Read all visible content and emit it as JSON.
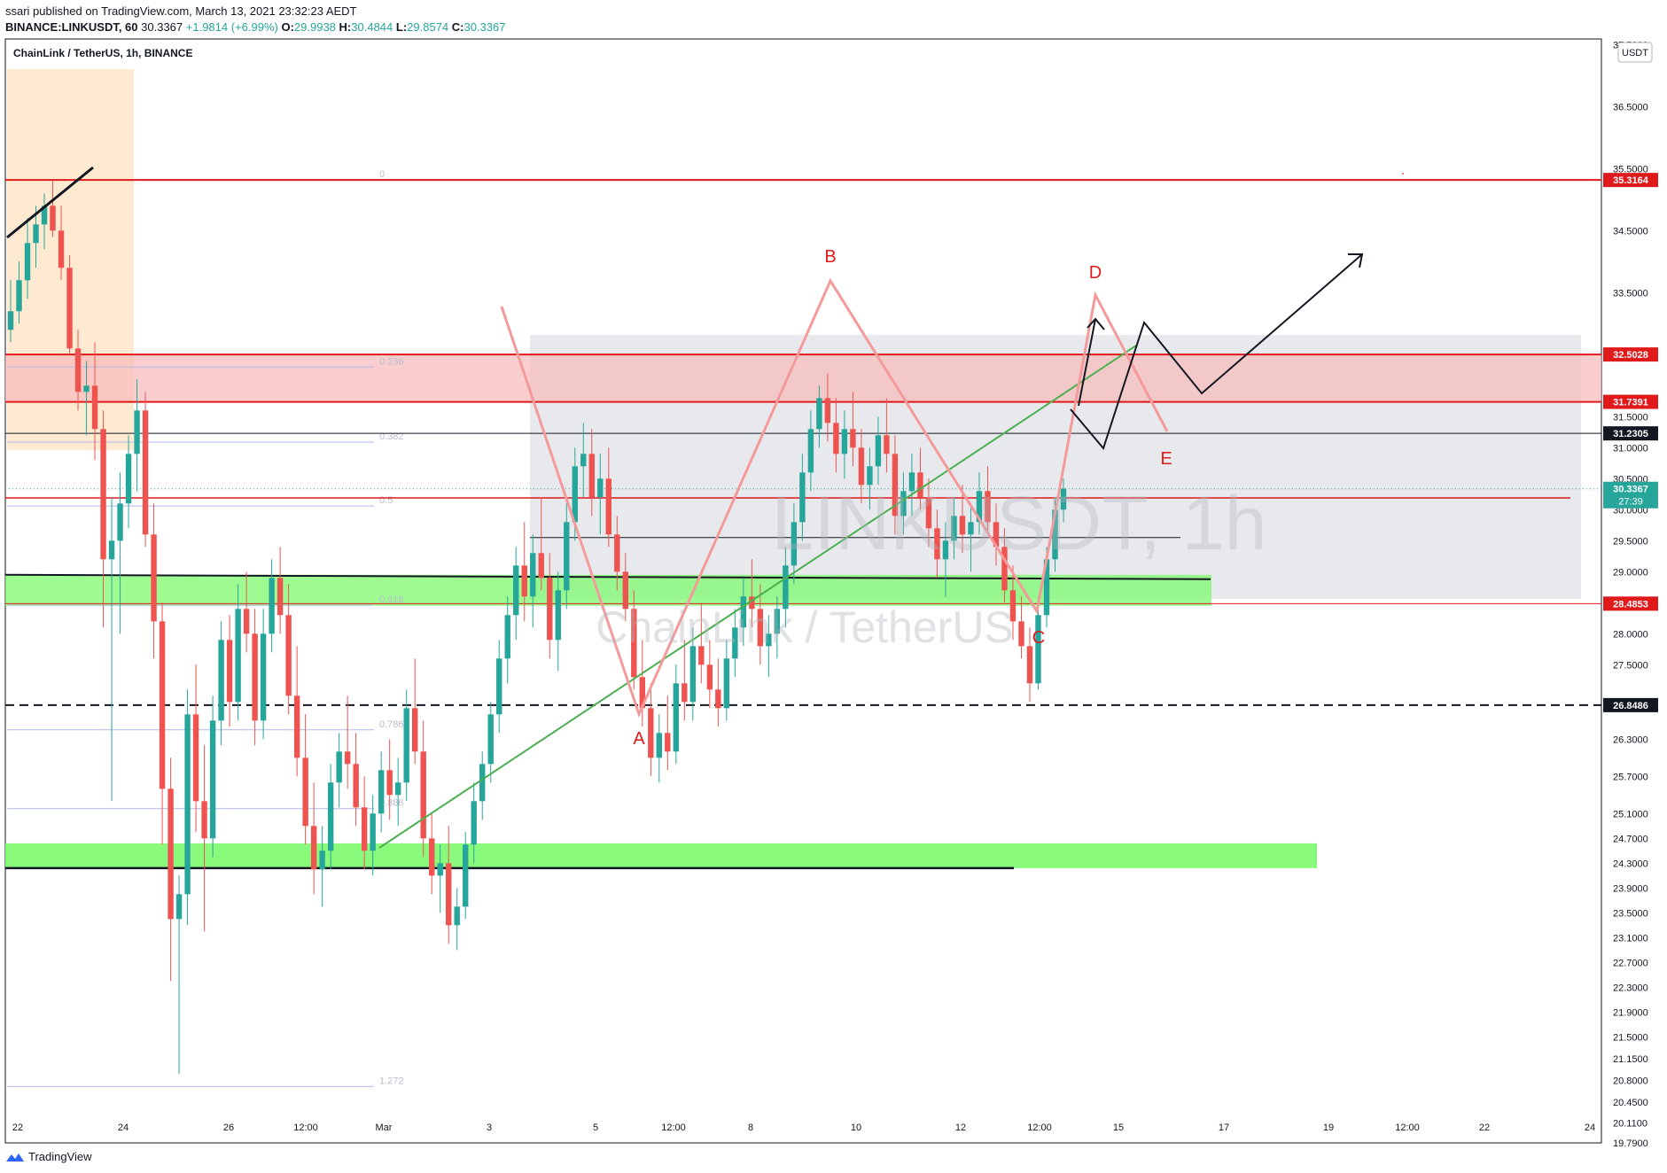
{
  "header": {
    "published": "ssari published on TradingView.com, March 13, 2021 23:32:23 AEDT",
    "symbol": "BINANCE:LINKUSDT, 60",
    "last": "30.3367",
    "change": "+1.9814 (+6.99%)",
    "o_label": "O:",
    "o": "29.9938",
    "h_label": "H:",
    "h": "30.4844",
    "l_label": "L:",
    "l": "29.8574",
    "c_label": "C:",
    "c": "30.3367"
  },
  "chart_title": "ChainLink / TetherUS, 1h, BINANCE",
  "watermark": {
    "symbol": "LINKUSDT, 1h",
    "name": "ChainLink / TetherUS"
  },
  "currency_button": "USDT",
  "footer_brand": "TradingView",
  "colors": {
    "up": "#26a69a",
    "down": "#ef5350",
    "level_red": "#e0191b",
    "green_zone": "#7dfa6e",
    "pink_zone": "#f8b9b9",
    "pattern": "#f59a9a",
    "trend": "#4caf50"
  },
  "chart_data": {
    "type": "candlestick",
    "title": "ChainLink / TetherUS, 1h, BINANCE",
    "ylim": [
      19.79,
      37.59
    ],
    "y_ticks": [
      "37.5000",
      "36.5000",
      "35.5000",
      "34.5000",
      "33.5000",
      "31.5000",
      "31.0000",
      "30.5000",
      "30.0000",
      "29.5000",
      "29.0000",
      "28.0000",
      "27.5000",
      "26.3000",
      "25.7000",
      "25.1000",
      "24.7000",
      "24.3000",
      "23.9000",
      "23.5000",
      "23.1000",
      "22.7000",
      "22.3000",
      "21.9000",
      "21.5000",
      "21.1500",
      "20.8000",
      "20.4500",
      "20.1100",
      "19.7900"
    ],
    "x_ticks": [
      "22",
      "24",
      "26",
      "12:00",
      "Mar",
      "3",
      "5",
      "12:00",
      "8",
      "10",
      "12",
      "12:00",
      "15",
      "17",
      "19",
      "12:00",
      "22",
      "24"
    ],
    "price_labels": [
      {
        "value": "35.3164",
        "kind": "red"
      },
      {
        "value": "32.5028",
        "kind": "red"
      },
      {
        "value": "31.7391",
        "kind": "red"
      },
      {
        "value": "31.2305",
        "kind": "black"
      },
      {
        "value": "30.3367",
        "kind": "last",
        "sub": "27:39"
      },
      {
        "value": "28.4853",
        "kind": "red"
      },
      {
        "value": "26.8486",
        "kind": "black"
      }
    ],
    "fib_levels": [
      {
        "label": "0",
        "price": 35.3164
      },
      {
        "label": "0.236",
        "price": 32.3
      },
      {
        "label": "0.382",
        "price": 31.09
      },
      {
        "label": "0.5",
        "price": 30.06
      },
      {
        "label": "0.618",
        "price": 28.46
      },
      {
        "label": "0.786",
        "price": 26.45
      },
      {
        "label": "0.886",
        "price": 25.18
      },
      {
        "label": "1.272",
        "price": 20.7
      }
    ],
    "pattern_labels": [
      "A",
      "B",
      "C",
      "D",
      "E"
    ],
    "candles": [
      [
        32.9,
        33.7,
        32.7,
        33.2
      ],
      [
        33.2,
        34.0,
        33.0,
        33.7
      ],
      [
        33.7,
        34.7,
        33.4,
        34.3
      ],
      [
        34.3,
        34.9,
        33.9,
        34.6
      ],
      [
        34.6,
        35.1,
        34.2,
        34.9
      ],
      [
        34.9,
        35.3,
        34.4,
        34.5
      ],
      [
        34.5,
        34.9,
        33.7,
        33.9
      ],
      [
        33.9,
        34.1,
        32.5,
        32.6
      ],
      [
        32.6,
        32.9,
        31.6,
        31.9
      ],
      [
        31.9,
        32.4,
        31.2,
        32.0
      ],
      [
        32.0,
        32.7,
        30.8,
        31.3
      ],
      [
        31.3,
        31.6,
        28.1,
        29.2
      ],
      [
        29.2,
        30.2,
        25.3,
        29.5
      ],
      [
        29.5,
        30.6,
        28.0,
        30.1
      ],
      [
        30.1,
        31.2,
        29.7,
        30.9
      ],
      [
        30.9,
        32.1,
        30.3,
        31.6
      ],
      [
        31.6,
        31.9,
        29.4,
        29.6
      ],
      [
        29.6,
        30.1,
        27.6,
        28.2
      ],
      [
        28.2,
        28.5,
        24.6,
        25.5
      ],
      [
        25.5,
        26.0,
        22.4,
        23.4
      ],
      [
        23.4,
        24.1,
        20.9,
        23.8
      ],
      [
        23.8,
        27.1,
        23.3,
        26.7
      ],
      [
        26.7,
        27.5,
        24.8,
        25.3
      ],
      [
        25.3,
        26.2,
        23.2,
        24.7
      ],
      [
        24.7,
        27.0,
        24.4,
        26.6
      ],
      [
        26.6,
        28.2,
        26.2,
        27.9
      ],
      [
        27.9,
        28.3,
        26.5,
        26.9
      ],
      [
        26.9,
        28.8,
        26.6,
        28.4
      ],
      [
        28.4,
        29.0,
        27.7,
        28.0
      ],
      [
        28.0,
        28.4,
        26.2,
        26.6
      ],
      [
        26.6,
        28.4,
        26.3,
        28.0
      ],
      [
        28.0,
        29.2,
        27.7,
        28.9
      ],
      [
        28.9,
        29.4,
        28.0,
        28.3
      ],
      [
        28.3,
        28.8,
        26.7,
        27.0
      ],
      [
        27.0,
        27.8,
        25.7,
        26.0
      ],
      [
        26.0,
        26.7,
        24.6,
        24.9
      ],
      [
        24.9,
        25.6,
        23.8,
        24.2
      ],
      [
        24.2,
        24.9,
        23.6,
        24.5
      ],
      [
        24.5,
        25.9,
        24.2,
        25.6
      ],
      [
        25.6,
        26.4,
        25.2,
        26.1
      ],
      [
        26.1,
        27.0,
        25.5,
        25.9
      ],
      [
        25.9,
        26.4,
        24.9,
        25.2
      ],
      [
        25.2,
        25.7,
        24.2,
        24.5
      ],
      [
        24.5,
        25.4,
        24.1,
        25.1
      ],
      [
        25.1,
        26.1,
        24.8,
        25.8
      ],
      [
        25.8,
        26.3,
        25.0,
        25.4
      ],
      [
        25.4,
        26.0,
        24.9,
        25.6
      ],
      [
        25.6,
        27.1,
        25.3,
        26.8
      ],
      [
        26.8,
        27.6,
        25.9,
        26.1
      ],
      [
        26.1,
        26.6,
        24.4,
        24.7
      ],
      [
        24.7,
        25.1,
        23.8,
        24.1
      ],
      [
        24.1,
        24.6,
        23.5,
        24.3
      ],
      [
        24.3,
        24.9,
        23.0,
        23.3
      ],
      [
        23.3,
        23.9,
        22.9,
        23.6
      ],
      [
        23.6,
        24.8,
        23.4,
        24.6
      ],
      [
        24.6,
        25.6,
        24.3,
        25.3
      ],
      [
        25.3,
        26.1,
        25.0,
        25.9
      ],
      [
        25.9,
        26.9,
        25.6,
        26.7
      ],
      [
        26.7,
        27.9,
        26.4,
        27.6
      ],
      [
        27.6,
        28.6,
        27.2,
        28.3
      ],
      [
        28.3,
        29.4,
        27.9,
        29.1
      ],
      [
        29.1,
        29.8,
        28.2,
        28.6
      ],
      [
        28.6,
        29.6,
        28.1,
        29.3
      ],
      [
        29.3,
        30.2,
        28.7,
        28.9
      ],
      [
        28.9,
        29.3,
        27.6,
        27.9
      ],
      [
        27.9,
        29.0,
        27.4,
        28.7
      ],
      [
        28.7,
        30.1,
        28.4,
        29.8
      ],
      [
        29.8,
        31.0,
        29.5,
        30.7
      ],
      [
        30.7,
        31.4,
        30.2,
        30.9
      ],
      [
        30.9,
        31.3,
        29.9,
        30.2
      ],
      [
        30.2,
        30.9,
        29.6,
        30.5
      ],
      [
        30.5,
        31.0,
        29.4,
        29.6
      ],
      [
        29.6,
        29.9,
        28.7,
        29.0
      ],
      [
        29.0,
        29.3,
        28.2,
        28.4
      ],
      [
        28.4,
        28.7,
        27.1,
        27.3
      ],
      [
        27.3,
        27.9,
        26.5,
        26.8
      ],
      [
        26.8,
        27.2,
        25.7,
        26.0
      ],
      [
        26.0,
        26.7,
        25.6,
        26.4
      ],
      [
        26.4,
        27.0,
        25.8,
        26.1
      ],
      [
        26.1,
        27.5,
        25.9,
        27.2
      ],
      [
        27.2,
        27.9,
        26.6,
        26.9
      ],
      [
        26.9,
        28.1,
        26.6,
        27.8
      ],
      [
        27.8,
        28.5,
        27.2,
        27.5
      ],
      [
        27.5,
        27.9,
        26.8,
        27.1
      ],
      [
        27.1,
        27.6,
        26.5,
        26.8
      ],
      [
        26.8,
        27.9,
        26.6,
        27.6
      ],
      [
        27.6,
        28.4,
        27.3,
        28.1
      ],
      [
        28.1,
        28.9,
        27.8,
        28.6
      ],
      [
        28.6,
        29.2,
        28.1,
        28.4
      ],
      [
        28.4,
        28.8,
        27.5,
        27.8
      ],
      [
        27.8,
        28.3,
        27.3,
        28.0
      ],
      [
        28.0,
        28.6,
        27.6,
        28.4
      ],
      [
        28.4,
        29.4,
        28.1,
        29.1
      ],
      [
        29.1,
        30.1,
        28.8,
        29.8
      ],
      [
        29.8,
        30.9,
        29.5,
        30.6
      ],
      [
        30.6,
        31.6,
        30.3,
        31.3
      ],
      [
        31.3,
        32.0,
        31.0,
        31.8
      ],
      [
        31.8,
        32.2,
        31.1,
        31.4
      ],
      [
        31.4,
        31.8,
        30.6,
        30.9
      ],
      [
        30.9,
        31.6,
        30.5,
        31.3
      ],
      [
        31.3,
        31.9,
        30.7,
        31.0
      ],
      [
        31.0,
        31.3,
        30.1,
        30.4
      ],
      [
        30.4,
        31.0,
        30.0,
        30.7
      ],
      [
        30.7,
        31.5,
        30.4,
        31.2
      ],
      [
        31.2,
        31.8,
        30.6,
        30.9
      ],
      [
        30.9,
        31.2,
        29.6,
        29.9
      ],
      [
        29.9,
        30.6,
        29.6,
        30.3
      ],
      [
        30.3,
        30.9,
        29.9,
        30.6
      ],
      [
        30.6,
        31.0,
        30.0,
        30.2
      ],
      [
        30.2,
        30.5,
        29.4,
        29.7
      ],
      [
        29.7,
        30.0,
        28.9,
        29.2
      ],
      [
        29.2,
        29.8,
        28.6,
        29.5
      ],
      [
        29.5,
        30.2,
        29.2,
        29.9
      ],
      [
        29.9,
        30.4,
        29.3,
        29.6
      ],
      [
        29.6,
        30.1,
        29.0,
        29.8
      ],
      [
        29.8,
        30.6,
        29.6,
        30.3
      ],
      [
        30.3,
        30.7,
        29.6,
        29.8
      ],
      [
        29.8,
        30.1,
        29.1,
        29.4
      ],
      [
        29.4,
        29.7,
        28.5,
        28.7
      ],
      [
        28.7,
        29.1,
        27.9,
        28.2
      ],
      [
        28.2,
        28.6,
        27.6,
        27.8
      ],
      [
        27.8,
        28.1,
        26.9,
        27.2
      ],
      [
        27.2,
        28.6,
        27.1,
        28.3
      ],
      [
        28.3,
        29.4,
        28.1,
        29.2
      ],
      [
        29.2,
        30.2,
        29.0,
        30.0
      ],
      [
        30.0,
        30.5,
        29.8,
        30.34
      ]
    ]
  }
}
